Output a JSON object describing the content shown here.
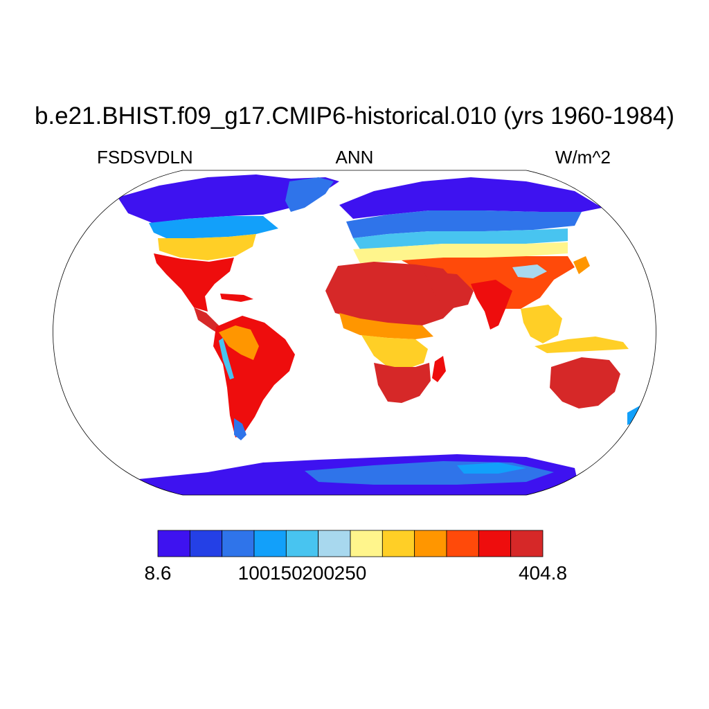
{
  "title": "b.e21.BHIST.f09_g17.CMIP6-historical.010 (yrs 1960-1984)",
  "variable": "FSDSVDLN",
  "season": "ANN",
  "units": "W/m^2",
  "colorbar": {
    "colors": [
      "#3e12f0",
      "#2440e6",
      "#2f74ea",
      "#12a0fa",
      "#48c4f0",
      "#a8d8ee",
      "#fff58c",
      "#ffcf26",
      "#ff9600",
      "#ff4a0a",
      "#ee0d0d",
      "#d62828"
    ],
    "labels": [
      "8.6",
      "100",
      "150",
      "200",
      "250",
      "404.8"
    ],
    "label_bins": [
      0,
      3,
      4,
      5,
      6,
      12
    ]
  },
  "colors": {
    "outline": "#000000",
    "ocean": "#ffffff"
  }
}
